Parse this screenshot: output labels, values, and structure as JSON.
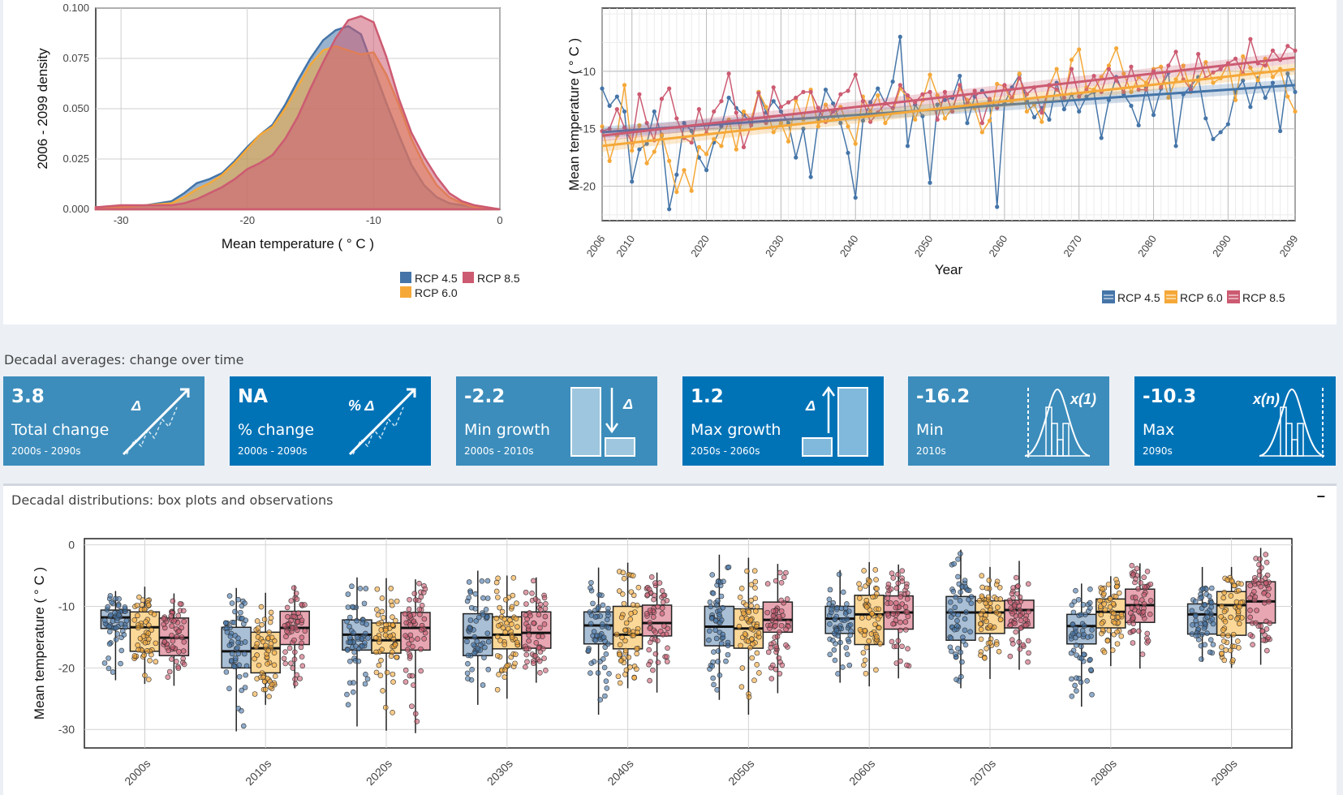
{
  "sections": {
    "decadal_averages_title": "Decadal averages: change over time",
    "decadal_distributions_title": "Decadal distributions: box plots and observations",
    "collapse_label": "−"
  },
  "colors": {
    "rcp45": "#4575a8",
    "rcp60": "#f5a838",
    "rcp85": "#cc5b72",
    "box_light": "#3c8dbc",
    "box_blue": "#0073b7"
  },
  "value_boxes": [
    {
      "value": "3.8",
      "label": "Total change",
      "period": "2000s - 2090s",
      "icon": "delta-trend-icon",
      "icon_text": "Δ",
      "color": "#3c8dbc"
    },
    {
      "value": "NA",
      "label": "% change",
      "period": "2000s - 2090s",
      "icon": "percent-delta-trend-icon",
      "icon_text": "% Δ",
      "color": "#0073b7"
    },
    {
      "value": "-2.2",
      "label": "Min growth",
      "period": "2000s - 2010s",
      "icon": "min-growth-icon",
      "icon_text": "Δ",
      "color": "#3c8dbc"
    },
    {
      "value": "1.2",
      "label": "Max growth",
      "period": "2050s - 2060s",
      "icon": "max-growth-icon",
      "icon_text": "Δ",
      "color": "#0073b7"
    },
    {
      "value": "-16.2",
      "label": "Min",
      "period": "2010s",
      "icon": "min-distribution-icon",
      "icon_text": "x(1)",
      "color": "#3c8dbc"
    },
    {
      "value": "-10.3",
      "label": "Max",
      "period": "2090s",
      "icon": "max-distribution-icon",
      "icon_text": "x(n)",
      "color": "#0073b7"
    }
  ],
  "chart_data": [
    {
      "type": "area",
      "xlabel": "Mean temperature ( ° C )",
      "ylabel": "2006 - 2099 density",
      "xlim": [
        -32,
        0
      ],
      "ylim": [
        0,
        0.1
      ],
      "xticks": [
        "-30",
        "-20",
        "-10",
        "0"
      ],
      "yticks": [
        "0.000",
        "0.025",
        "0.050",
        "0.075",
        "0.100"
      ],
      "legend_placement": "bottom-right",
      "x": [
        -32,
        -30,
        -28,
        -26,
        -25,
        -24,
        -23,
        -22,
        -21,
        -20,
        -19,
        -18,
        -17,
        -16,
        -15,
        -14,
        -13,
        -12,
        -11,
        -10,
        -9,
        -8,
        -7,
        -6,
        -5,
        -4,
        -3,
        -2,
        0
      ],
      "series": [
        {
          "name": "RCP 4.5",
          "color": "#4575a8",
          "values": [
            0.001,
            0.001,
            0.002,
            0.004,
            0.008,
            0.013,
            0.015,
            0.018,
            0.024,
            0.031,
            0.037,
            0.042,
            0.052,
            0.064,
            0.075,
            0.084,
            0.089,
            0.091,
            0.087,
            0.07,
            0.053,
            0.037,
            0.022,
            0.012,
            0.006,
            0.003,
            0.002,
            0.001,
            0
          ]
        },
        {
          "name": "RCP 6.0",
          "color": "#f5a838",
          "values": [
            0.001,
            0.001,
            0.002,
            0.003,
            0.006,
            0.01,
            0.013,
            0.017,
            0.023,
            0.03,
            0.037,
            0.041,
            0.05,
            0.061,
            0.072,
            0.079,
            0.081,
            0.079,
            0.077,
            0.078,
            0.067,
            0.052,
            0.035,
            0.022,
            0.012,
            0.006,
            0.003,
            0.001,
            0
          ]
        },
        {
          "name": "RCP 8.5",
          "color": "#cc5b72",
          "values": [
            0.001,
            0.002,
            0.002,
            0.002,
            0.003,
            0.005,
            0.008,
            0.011,
            0.015,
            0.02,
            0.023,
            0.027,
            0.035,
            0.046,
            0.06,
            0.073,
            0.085,
            0.094,
            0.096,
            0.093,
            0.076,
            0.055,
            0.038,
            0.026,
            0.016,
            0.008,
            0.004,
            0.002,
            0
          ]
        }
      ]
    },
    {
      "type": "line",
      "xlabel": "Year",
      "ylabel": "Mean temperature ( ° C )",
      "xlim": [
        2006,
        2099
      ],
      "ylim": [
        -23,
        -4.5
      ],
      "xticks": [
        "2006",
        "2010",
        "2020",
        "2030",
        "2040",
        "2050",
        "2060",
        "2070",
        "2080",
        "2090",
        "2099"
      ],
      "yticks": [
        "-10",
        "-15",
        "-20"
      ],
      "grid": true,
      "legend_placement": "bottom-right",
      "series": [
        {
          "name": "RCP 4.5",
          "color": "#4575a8",
          "trend": [
            -15.3,
            -11.2
          ],
          "values": [
            -11.5,
            -13,
            -12.2,
            -13.5,
            -19.6,
            -16.8,
            -16.3,
            -13.5,
            -15.6,
            -22,
            -19,
            -14.5,
            -15.2,
            -17.5,
            -18.6,
            -16.2,
            -14.8,
            -12.3,
            -13.2,
            -13.8,
            -14.5,
            -11.8,
            -13.6,
            -12.6,
            -13.5,
            -14.5,
            -17.5,
            -15,
            -19.2,
            -14.3,
            -11.6,
            -12.8,
            -14.5,
            -17.1,
            -21,
            -14.3,
            -12.7,
            -11.5,
            -12.8,
            -10.9,
            -7,
            -16.5,
            -12.9,
            -13.9,
            -19.7,
            -12.9,
            -12.5,
            -12.3,
            -10.4,
            -14.5,
            -12.2,
            -11.7,
            -12.6,
            -21.8,
            -12.8,
            -11.4,
            -10.3,
            -12.6,
            -14,
            -13.2,
            -14.2,
            -11,
            -13.3,
            -12,
            -13.5,
            -12.2,
            -11.8,
            -15.8,
            -12.5,
            -10.5,
            -12,
            -13,
            -14.7,
            -11.4,
            -13.8,
            -11.5,
            -10.1,
            -16.5,
            -12,
            -11.3,
            -10.5,
            -14.1,
            -15.9,
            -15.3,
            -14.6,
            -11.8,
            -10.8,
            -13.1,
            -10.6,
            -12.3,
            -11,
            -15.2,
            -10.2,
            -11.8
          ]
        },
        {
          "name": "RCP 6.0",
          "color": "#f5a838",
          "trend": [
            -16.5,
            -9.8
          ],
          "values": [
            -14.8,
            -17.8,
            -15.6,
            -11.2,
            -16.9,
            -14.7,
            -18,
            -17,
            -15.5,
            -17.8,
            -20.5,
            -18.6,
            -20.4,
            -16.6,
            -17.2,
            -15.9,
            -16.5,
            -14.2,
            -16.8,
            -13.5,
            -14.2,
            -11.8,
            -13.1,
            -15.3,
            -14.5,
            -16.1,
            -12.5,
            -14.2,
            -11.6,
            -14.8,
            -12.9,
            -14,
            -13.1,
            -14.8,
            -16.3,
            -12.2,
            -13.5,
            -12.1,
            -14.5,
            -13.6,
            -11.5,
            -12.3,
            -14.2,
            -12.5,
            -10.3,
            -12.1,
            -14.1,
            -13.2,
            -11.5,
            -12.5,
            -13.2,
            -15.3,
            -14.3,
            -11.1,
            -11.3,
            -12.8,
            -10.2,
            -13.5,
            -12.9,
            -14.4,
            -11.3,
            -9.8,
            -12.5,
            -9,
            -8.1,
            -11.4,
            -11.6,
            -10.5,
            -9.5,
            -8,
            -10.2,
            -11.8,
            -10.5,
            -11,
            -9.8,
            -9.6,
            -12.3,
            -10.7,
            -9.5,
            -11.8,
            -10.8,
            -9.2,
            -11,
            -10.6,
            -9.3,
            -12.5,
            -8.7,
            -9.7,
            -10.8,
            -8.9,
            -10.5,
            -9.8,
            -12.2,
            -13.5
          ]
        },
        {
          "name": "RCP 8.5",
          "color": "#cc5b72",
          "trend": [
            -15.6,
            -8.8
          ],
          "values": [
            -15.2,
            -15,
            -13.3,
            -14.9,
            -16.2,
            -12,
            -14.5,
            -16,
            -12.4,
            -11.5,
            -14.1,
            -15.8,
            -16.2,
            -13.3,
            -15.4,
            -13.5,
            -12.6,
            -10.2,
            -13.6,
            -16.6,
            -14.7,
            -11.9,
            -14.5,
            -11.4,
            -13.1,
            -12.7,
            -12.3,
            -11.8,
            -11.8,
            -13.2,
            -14.4,
            -13.5,
            -12,
            -11.7,
            -10.3,
            -12.6,
            -14.4,
            -13.6,
            -12.8,
            -13.2,
            -11.2,
            -12.1,
            -12.7,
            -12,
            -11.8,
            -14.2,
            -11.8,
            -13.5,
            -11.2,
            -12.8,
            -11.7,
            -14.5,
            -12.4,
            -13.2,
            -11.2,
            -12.3,
            -10.6,
            -12,
            -11.4,
            -13.6,
            -11.2,
            -11.6,
            -12.3,
            -9.8,
            -12.2,
            -11.6,
            -10.4,
            -11.8,
            -9.8,
            -10.8,
            -11.8,
            -9.6,
            -11.6,
            -11.6,
            -10,
            -11.4,
            -9.5,
            -8.3,
            -10.7,
            -11.6,
            -8.5,
            -10.6,
            -10.1,
            -9.8,
            -9.3,
            -8.9,
            -10.2,
            -7.2,
            -9.3,
            -9.5,
            -8.2,
            -9,
            -7.8,
            -8.2
          ]
        }
      ]
    },
    {
      "type": "box",
      "ylabel": "Mean temperature ( ° C )",
      "ylim": [
        -33,
        1
      ],
      "yticks": [
        "0",
        "-10",
        "-20",
        "-30"
      ],
      "categories": [
        "2000s",
        "2010s",
        "2020s",
        "2030s",
        "2040s",
        "2050s",
        "2060s",
        "2070s",
        "2080s",
        "2090s"
      ],
      "series": [
        {
          "name": "RCP 4.5",
          "color": "#4575a8",
          "fill": "#a8bfd6",
          "boxes": [
            [
              -22,
              -13.6,
              -11.8,
              -10.6,
              -7.5
            ],
            [
              -30.3,
              -20,
              -17.3,
              -13.4,
              -7
            ],
            [
              -29.5,
              -17.1,
              -14.6,
              -12.2,
              -5.3
            ],
            [
              -26,
              -18,
              -15.1,
              -11.2,
              -4.2
            ],
            [
              -27.6,
              -16.1,
              -13.1,
              -10.9,
              -3.7
            ],
            [
              -25.2,
              -16.4,
              -13.3,
              -10,
              -1.6
            ],
            [
              -22.4,
              -14.4,
              -12,
              -10,
              -4.1
            ],
            [
              -23.3,
              -15.5,
              -11,
              -8.4,
              -0.8
            ],
            [
              -26.3,
              -16.1,
              -13.2,
              -11.3,
              -6.3
            ],
            [
              -19,
              -14.5,
              -11.3,
              -9.6,
              -3.6
            ]
          ]
        },
        {
          "name": "RCP 6.0",
          "color": "#f5a838",
          "fill": "#fbd898",
          "boxes": [
            [
              -22.6,
              -17.3,
              -13.4,
              -10.9,
              -6.8
            ],
            [
              -26,
              -20.8,
              -16.8,
              -14.2,
              -7.8
            ],
            [
              -30.2,
              -17.6,
              -15.5,
              -12.7,
              -5.4
            ],
            [
              -25,
              -16.9,
              -14.6,
              -11.7,
              -5
            ],
            [
              -23.3,
              -16.9,
              -14.6,
              -10,
              -2.9
            ],
            [
              -27.6,
              -16.8,
              -13.6,
              -10.4,
              -2.1
            ],
            [
              -23,
              -16.2,
              -11.3,
              -8.2,
              -2.8
            ],
            [
              -21.8,
              -14.4,
              -11,
              -9.1,
              -3.6
            ],
            [
              -19.7,
              -13.5,
              -10.9,
              -8.8,
              -5.1
            ],
            [
              -20,
              -14.7,
              -9.8,
              -7.6,
              -3.6
            ]
          ]
        },
        {
          "name": "RCP 8.5",
          "color": "#cc5b72",
          "fill": "#e8a5b2",
          "boxes": [
            [
              -22.9,
              -18,
              -15.1,
              -11.9,
              -7.9
            ],
            [
              -23.3,
              -16.2,
              -13.5,
              -10.8,
              -6.6
            ],
            [
              -30.6,
              -17.1,
              -13.5,
              -11,
              -5.6
            ],
            [
              -22.4,
              -16.8,
              -14.3,
              -10.9,
              -5.3
            ],
            [
              -24,
              -14.8,
              -12.7,
              -9.8,
              -4.5
            ],
            [
              -24.1,
              -14.2,
              -12.2,
              -9.3,
              -3.1
            ],
            [
              -21.7,
              -13.7,
              -11,
              -8.3,
              -3.2
            ],
            [
              -20.3,
              -13.5,
              -10.6,
              -9,
              -2.6
            ],
            [
              -20.1,
              -12.6,
              -9.8,
              -7.2,
              -3
            ],
            [
              -19.5,
              -12.7,
              -9.2,
              -6,
              -0.5
            ]
          ]
        }
      ]
    }
  ]
}
